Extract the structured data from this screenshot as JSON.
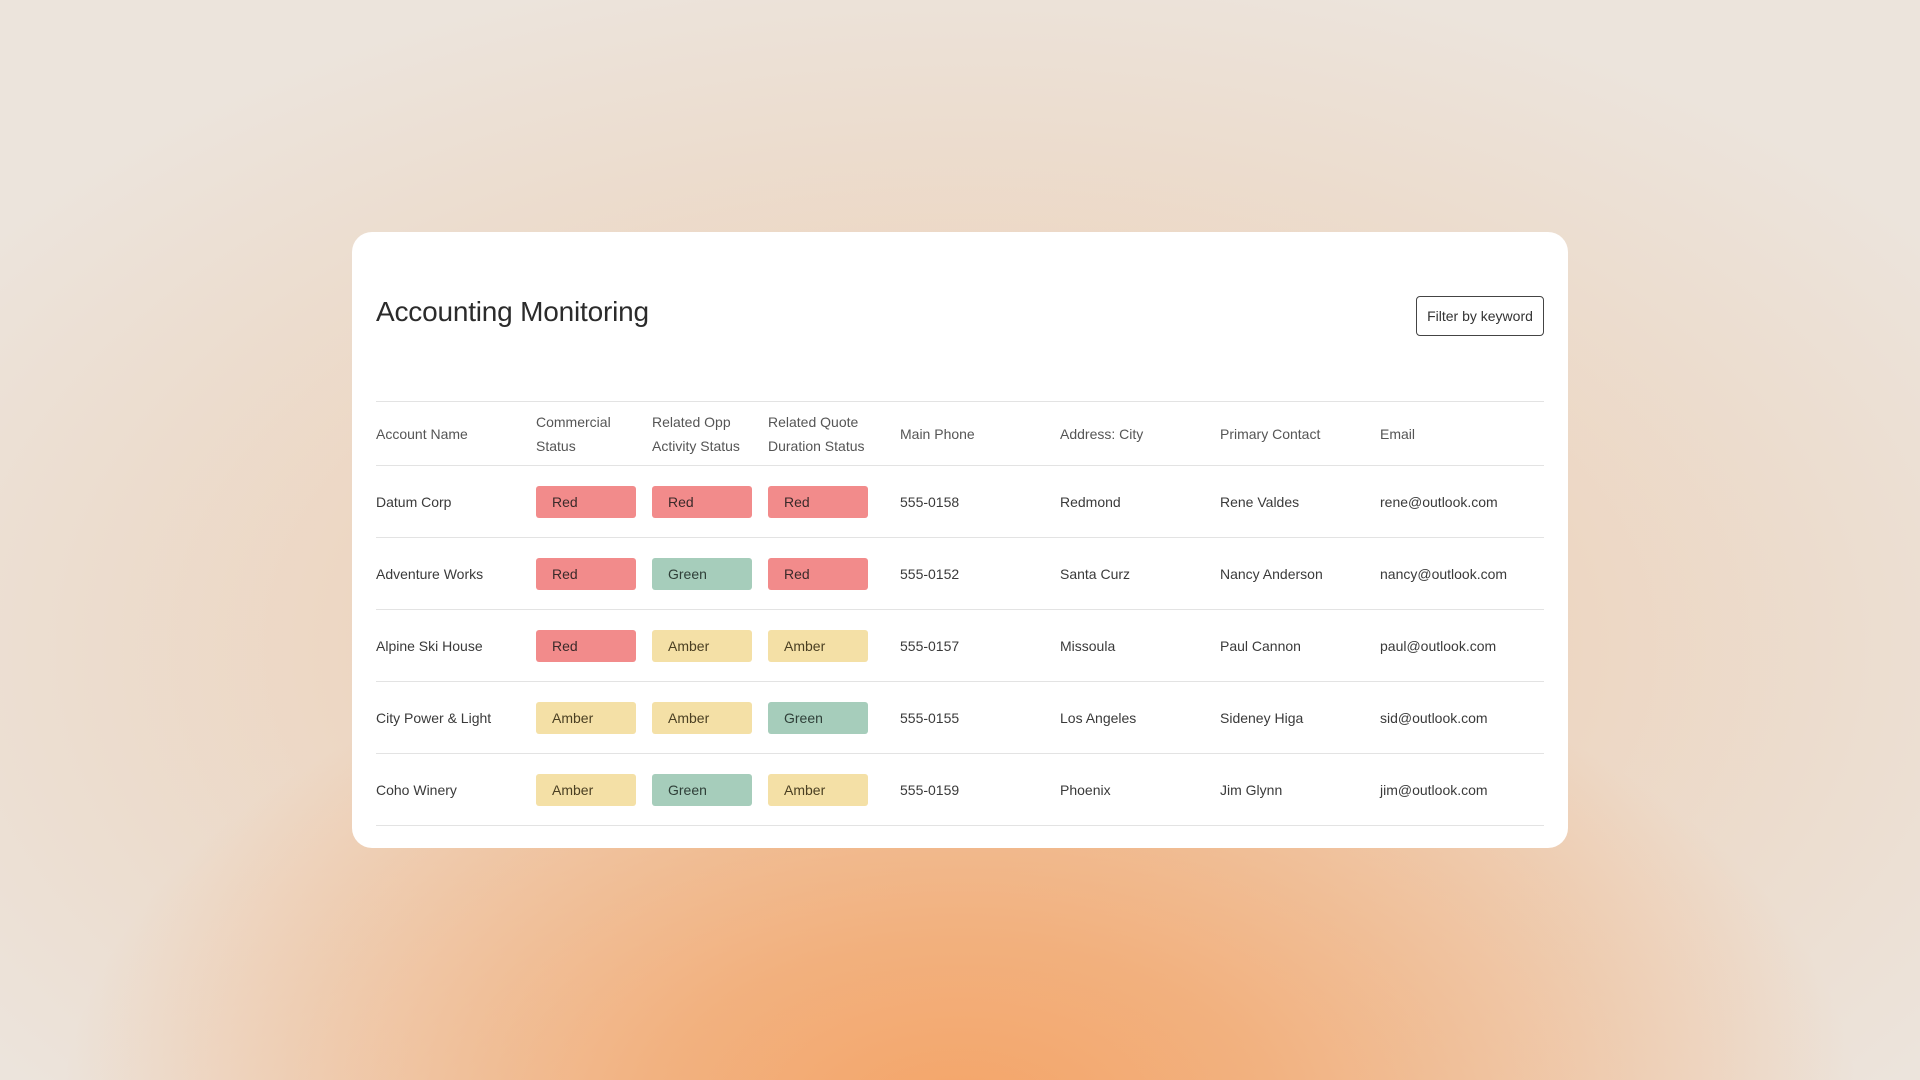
{
  "page": {
    "title": "Accounting Monitoring",
    "filter_button": "Filter by keyword"
  },
  "colors": {
    "Red": "#f28b8b",
    "Green": "#a6cdbb",
    "Amber": "#f4e0a6"
  },
  "table": {
    "headers": {
      "account_name": "Account Name",
      "commercial_status_line1": "Commercial",
      "commercial_status_line2": "Status",
      "opp_status_line1": "Related Opp",
      "opp_status_line2": "Activity Status",
      "quote_status_line1": "Related Quote",
      "quote_status_line2": "Duration Status",
      "main_phone": "Main Phone",
      "city": "Address: City",
      "primary_contact": "Primary Contact",
      "email": "Email"
    },
    "rows": [
      {
        "account_name": "Datum Corp",
        "commercial_status": "Red",
        "opp_status": "Red",
        "quote_status": "Red",
        "main_phone": "555-0158",
        "city": "Redmond",
        "primary_contact": "Rene Valdes",
        "email": "rene@outlook.com"
      },
      {
        "account_name": "Adventure Works",
        "commercial_status": "Red",
        "opp_status": "Green",
        "quote_status": "Red",
        "main_phone": "555-0152",
        "city": "Santa Curz",
        "primary_contact": "Nancy Anderson",
        "email": "nancy@outlook.com"
      },
      {
        "account_name": "Alpine Ski House",
        "commercial_status": "Red",
        "opp_status": "Amber",
        "quote_status": "Amber",
        "main_phone": "555-0157",
        "city": "Missoula",
        "primary_contact": "Paul Cannon",
        "email": "paul@outlook.com"
      },
      {
        "account_name": "City Power & Light",
        "commercial_status": "Amber",
        "opp_status": "Amber",
        "quote_status": "Green",
        "main_phone": "555-0155",
        "city": "Los Angeles",
        "primary_contact": "Sideney Higa",
        "email": "sid@outlook.com"
      },
      {
        "account_name": "Coho Winery",
        "commercial_status": "Amber",
        "opp_status": "Green",
        "quote_status": "Amber",
        "main_phone": "555-0159",
        "city": "Phoenix",
        "primary_contact": "Jim Glynn",
        "email": "jim@outlook.com"
      }
    ]
  }
}
